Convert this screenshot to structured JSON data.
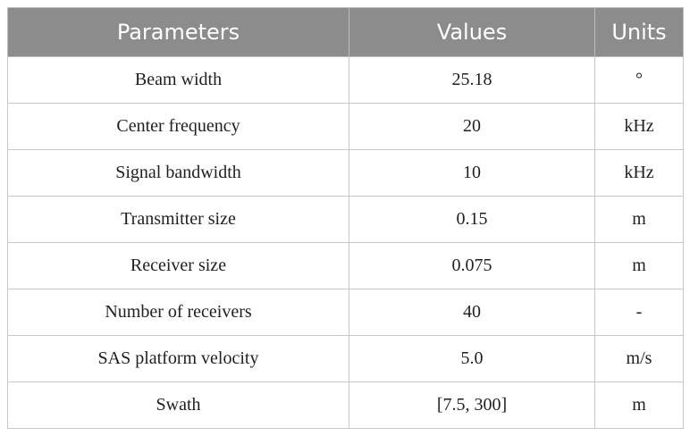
{
  "table": {
    "headers": [
      "Parameters",
      "Values",
      "Units"
    ],
    "rows": [
      {
        "parameter": "Beam width",
        "value": "25.18",
        "unit": "°"
      },
      {
        "parameter": "Center frequency",
        "value": "20",
        "unit": "kHz"
      },
      {
        "parameter": "Signal bandwidth",
        "value": "10",
        "unit": "kHz"
      },
      {
        "parameter": "Transmitter size",
        "value": "0.15",
        "unit": "m"
      },
      {
        "parameter": "Receiver size",
        "value": "0.075",
        "unit": "m"
      },
      {
        "parameter": "Number of receivers",
        "value": "40",
        "unit": "-"
      },
      {
        "parameter": "SAS platform velocity",
        "value": "5.0",
        "unit": "m/s"
      },
      {
        "parameter": "Swath",
        "value": "[7.5, 300]",
        "unit": "m"
      }
    ]
  },
  "colors": {
    "header_bg": "#8c8c8c",
    "header_text": "#ffffff",
    "grid": "#c8c8c8"
  }
}
